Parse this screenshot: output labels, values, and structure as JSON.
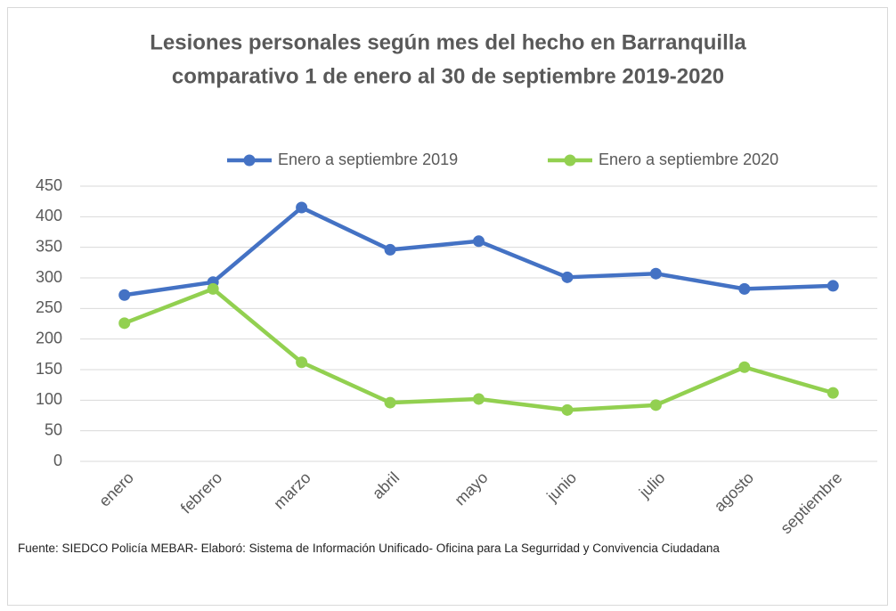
{
  "chart_data": {
    "type": "line",
    "title": [
      "Lesiones personales según mes del hecho en Barranquilla",
      "comparativo 1 de enero al 30 de septiembre  2019-2020"
    ],
    "categories": [
      "enero",
      "febrero",
      "marzo",
      "abril",
      "mayo",
      "junio",
      "julio",
      "agosto",
      "septiembre"
    ],
    "series": [
      {
        "name": "Enero a septiembre 2019",
        "color": "#4472c4",
        "values": [
          272,
          293,
          415,
          346,
          360,
          301,
          307,
          282,
          287
        ]
      },
      {
        "name": "Enero a septiembre 2020",
        "color": "#92d050",
        "values": [
          226,
          282,
          162,
          96,
          102,
          84,
          92,
          154,
          112
        ]
      }
    ],
    "ylim": [
      0,
      450
    ],
    "yticks": [
      0,
      50,
      100,
      150,
      200,
      250,
      300,
      350,
      400,
      450
    ],
    "grid": true,
    "legend": "top",
    "source": "Fuente:  SIEDCO Policía MEBAR- Elaboró: Sistema de Información Unificado- Oficina para La Segurridad y Convivencia Ciudadana"
  }
}
